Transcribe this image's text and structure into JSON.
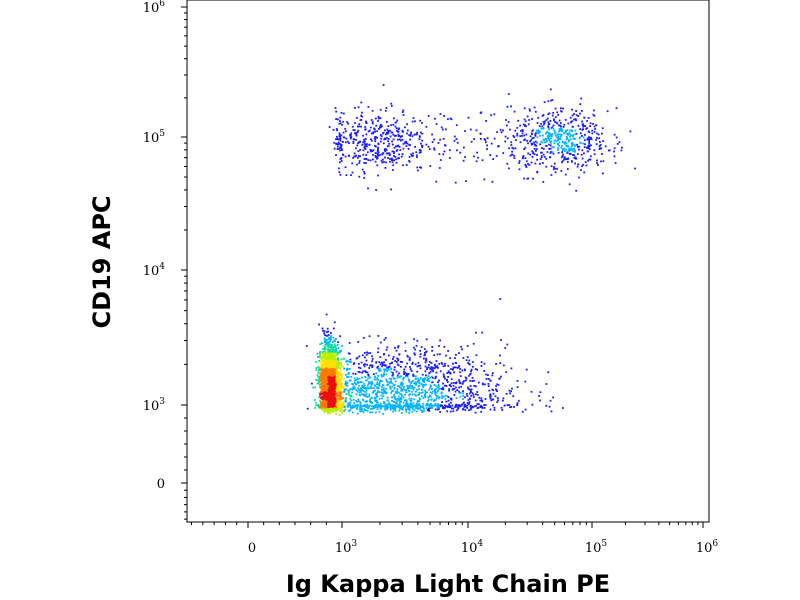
{
  "chart_data": {
    "type": "scatter",
    "style": "flow-cytometry density dot plot (biexponential axes)",
    "xlabel": "Ig Kappa Light Chain PE",
    "ylabel": "CD19 APC",
    "x_scale": "biexponential",
    "y_scale": "biexponential",
    "xlim": [
      -500,
      1000000
    ],
    "ylim": [
      -500,
      1000000
    ],
    "x_ticks": [
      {
        "base": "0",
        "exp": ""
      },
      {
        "base": "10",
        "exp": "3"
      },
      {
        "base": "10",
        "exp": "4"
      },
      {
        "base": "10",
        "exp": "5"
      },
      {
        "base": "10",
        "exp": "6"
      }
    ],
    "y_ticks": [
      {
        "base": "0",
        "exp": ""
      },
      {
        "base": "10",
        "exp": "3"
      },
      {
        "base": "10",
        "exp": "4"
      },
      {
        "base": "10",
        "exp": "5"
      },
      {
        "base": "10",
        "exp": "6"
      }
    ],
    "density_colors": [
      "#1a1aff",
      "#00b4ff",
      "#00e0a0",
      "#b8f000",
      "#ffe000",
      "#ff7a00",
      "#e81010"
    ],
    "populations": [
      {
        "name": "",
        "x_center_log10": 2.6,
        "y_center_log10": 3.15,
        "x_spread_log10": 0.14,
        "y_spread_log10": 0.14,
        "count": 2200
      },
      {
        "name": "",
        "x_center_log10": 3.4,
        "y_center_log10": 3.1,
        "x_spread_log10": 0.45,
        "y_spread_log10": 0.16,
        "count": 1700
      },
      {
        "name": "",
        "x_center_log10": 3.25,
        "y_center_log10": 4.97,
        "x_spread_log10": 0.22,
        "y_spread_log10": 0.12,
        "count": 420
      },
      {
        "name": "",
        "x_center_log10": 4.75,
        "y_center_log10": 4.97,
        "x_spread_log10": 0.2,
        "y_spread_log10": 0.12,
        "count": 520
      },
      {
        "name": "",
        "x_center_log10": 4.0,
        "y_center_log10": 4.97,
        "x_spread_log10": 0.4,
        "y_spread_log10": 0.13,
        "count": 120
      }
    ]
  }
}
